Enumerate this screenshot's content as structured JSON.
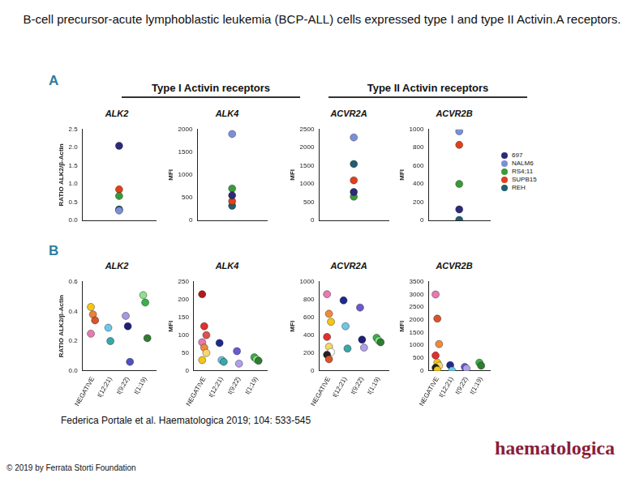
{
  "title": "B-cell precursor-acute lymphoblastic leukemia (BCP-ALL) cells expressed type I and type II Activin.A receptors.",
  "panel_labels": [
    "A",
    "B"
  ],
  "group_titles": [
    "Type I Activin receptors",
    "Type II Activin receptors"
  ],
  "citation": "Federica Portale et al. Haematologica 2019; 104: 533-545",
  "copyright": "© 2019 by Ferrata Storti Foundation",
  "publisher": "haematologica",
  "chart_data": [
    {
      "type": "scatter",
      "title": "ALK2",
      "y_label": "RATIO ALK2/β-Actin",
      "categories": [
        null
      ],
      "series": [
        {
          "color": "#2d2a7a",
          "values": [
            2.05
          ]
        },
        {
          "color": "#7b8fd8",
          "values": [
            0.27
          ]
        },
        {
          "color": "#3a9a3a",
          "values": [
            0.67
          ]
        },
        {
          "color": "#e0401a",
          "values": [
            0.85
          ]
        },
        {
          "color": "#1f5f6f",
          "values": [
            0.3
          ]
        }
      ],
      "ylim": [
        0,
        2.5
      ],
      "yticks": [
        {
          "value": 0,
          "label": "0.0"
        },
        0.5,
        {
          "value": 1,
          "label": "1.0"
        },
        1.5,
        {
          "value": 2,
          "label": "2.0"
        },
        2.5
      ],
      "grid": false,
      "tick_labels": "y"
    },
    {
      "type": "scatter",
      "title": "ALK4",
      "y_label": "MFI",
      "categories": [
        null
      ],
      "series": [
        {
          "color": "#2d2a7a",
          "values": [
            550
          ]
        },
        {
          "color": "#7b8fd8",
          "values": [
            1900
          ]
        },
        {
          "color": "#3a9a3a",
          "values": [
            700
          ]
        },
        {
          "color": "#e0401a",
          "values": [
            420
          ]
        },
        {
          "color": "#1f5f6f",
          "values": [
            320
          ]
        }
      ],
      "ylim": [
        0,
        2000
      ],
      "yticks": [
        0,
        500,
        1000,
        1500,
        2000
      ],
      "grid": false,
      "tick_labels": "y"
    },
    {
      "type": "scatter",
      "title": "ACVR2A",
      "y_label": "MFI",
      "categories": [
        null
      ],
      "series": [
        {
          "color": "#2d2a7a",
          "values": [
            780
          ]
        },
        {
          "color": "#7b8fd8",
          "values": [
            2280
          ]
        },
        {
          "color": "#3a9a3a",
          "values": [
            650
          ]
        },
        {
          "color": "#e0401a",
          "values": [
            1100
          ]
        },
        {
          "color": "#1f5f6f",
          "values": [
            1550
          ]
        }
      ],
      "ylim": [
        0,
        2500
      ],
      "yticks": [
        0,
        500,
        1000,
        1500,
        2000,
        2500
      ],
      "grid": false,
      "tick_labels": "y"
    },
    {
      "type": "scatter",
      "title": "ACVR2B",
      "y_label": "MFI",
      "categories": [
        null
      ],
      "series": [
        {
          "name": "697",
          "color": "#2d2a7a",
          "values": [
            120
          ]
        },
        {
          "name": "NALM6",
          "color": "#7b8fd8",
          "values": [
            980
          ]
        },
        {
          "name": "RS4;11",
          "color": "#3a9a3a",
          "values": [
            400
          ]
        },
        {
          "name": "SUPB15",
          "color": "#e0401a",
          "values": [
            830
          ]
        },
        {
          "name": "REH",
          "color": "#1f5f6f",
          "values": [
            5
          ]
        }
      ],
      "ylim": [
        0,
        1000
      ],
      "yticks": [
        0,
        200,
        400,
        600,
        800,
        1000
      ],
      "grid": false,
      "tick_labels": "y",
      "legend": "right"
    },
    {
      "type": "scatter",
      "title": "ALK2",
      "y_label": "RATIO ALK2/β-Actin",
      "categories": [
        "NEGATIVE",
        "t(12;21)",
        "t(9;22)",
        "t(1;19)"
      ],
      "values": [
        [
          0.43,
          0.38,
          0.34,
          0.25
        ],
        [
          0.29,
          0.2
        ],
        [
          0.37,
          0.3,
          0.06
        ],
        [
          0.51,
          0.46,
          0.22
        ]
      ],
      "colors": [
        [
          "#f5c518",
          "#e8843a",
          "#d9542a",
          "#e87ab0"
        ],
        [
          "#6ec6e8",
          "#3aa8a8"
        ],
        [
          "#a898e0",
          "#1f1f7a",
          "#5050c0"
        ],
        [
          "#8ee08e",
          "#3ab04a",
          "#2e7d32"
        ]
      ],
      "ylim": [
        0,
        0.6
      ],
      "yticks": [
        {
          "value": 0,
          "label": "0.0"
        },
        0.2,
        0.4,
        0.6
      ],
      "grid": false
    },
    {
      "type": "scatter",
      "title": "ALK4",
      "y_label": "MFI",
      "categories": [
        "NEGATIVE",
        "t(12;21)",
        "t(9;22)",
        "t(1;19)"
      ],
      "values": [
        [
          215,
          125,
          100,
          80,
          65,
          50,
          30
        ],
        [
          78,
          30,
          25
        ],
        [
          55,
          20
        ],
        [
          38,
          32,
          28
        ]
      ],
      "colors": [
        [
          "#b01c1c",
          "#e03030",
          "#e05050",
          "#e87ab0",
          "#f08a3a",
          "#f5d76e",
          "#f5c518"
        ],
        [
          "#1f2a8a",
          "#6ec6e8",
          "#3aa8a8"
        ],
        [
          "#6a5acd",
          "#b0a0e8"
        ],
        [
          "#3ab04a",
          "#8ee08e",
          "#2e7d32"
        ]
      ],
      "ylim": [
        0,
        250
      ],
      "yticks": [
        0,
        50,
        100,
        150,
        200,
        250
      ],
      "grid": false
    },
    {
      "type": "scatter",
      "title": "ACVR2A",
      "y_label": "MFI",
      "categories": [
        "NEGATIVE",
        "t(12;21)",
        "t(9;22)",
        "t(1;19)"
      ],
      "values": [
        [
          860,
          640,
          550,
          380,
          270,
          210,
          180,
          130
        ],
        [
          790,
          500,
          250
        ],
        [
          710,
          350,
          260
        ],
        [
          370,
          340,
          320
        ]
      ],
      "colors": [
        [
          "#e87ab0",
          "#f08a3a",
          "#f5c518",
          "#e03030",
          "#f5d76e",
          "#ffffff",
          "#222222",
          "#d9542a"
        ],
        [
          "#1f2a8a",
          "#6ec6e8",
          "#3aa8a8"
        ],
        [
          "#6a5acd",
          "#1f1f7a",
          "#b0a0e8"
        ],
        [
          "#3ab04a",
          "#8ee08e",
          "#2e7d32"
        ]
      ],
      "ylim": [
        0,
        1000
      ],
      "yticks": [
        0,
        200,
        400,
        600,
        800,
        1000
      ],
      "grid": false
    },
    {
      "type": "scatter",
      "title": "ACVR2B",
      "y_label": "MFI",
      "categories": [
        "NEGATIVE",
        "t(12;21)",
        "t(9;22)",
        "t(1;19)"
      ],
      "values": [
        [
          3000,
          2050,
          1050,
          600,
          320,
          200,
          120,
          30
        ],
        [
          220,
          10
        ],
        [
          150,
          90
        ],
        [
          320,
          200
        ]
      ],
      "colors": [
        [
          "#e87ab0",
          "#d9542a",
          "#f08a3a",
          "#e03030",
          "#f5c518",
          "#f5d76e",
          "#222222",
          "#f5c518"
        ],
        [
          "#1f2a8a",
          "#6ec6e8"
        ],
        [
          "#6a5acd",
          "#b0a0e8"
        ],
        [
          "#3ab04a",
          "#2e7d32"
        ]
      ],
      "ylim": [
        0,
        3500
      ],
      "yticks": [
        0,
        500,
        1000,
        1500,
        2000,
        2500,
        3000,
        3500
      ],
      "grid": false
    }
  ]
}
